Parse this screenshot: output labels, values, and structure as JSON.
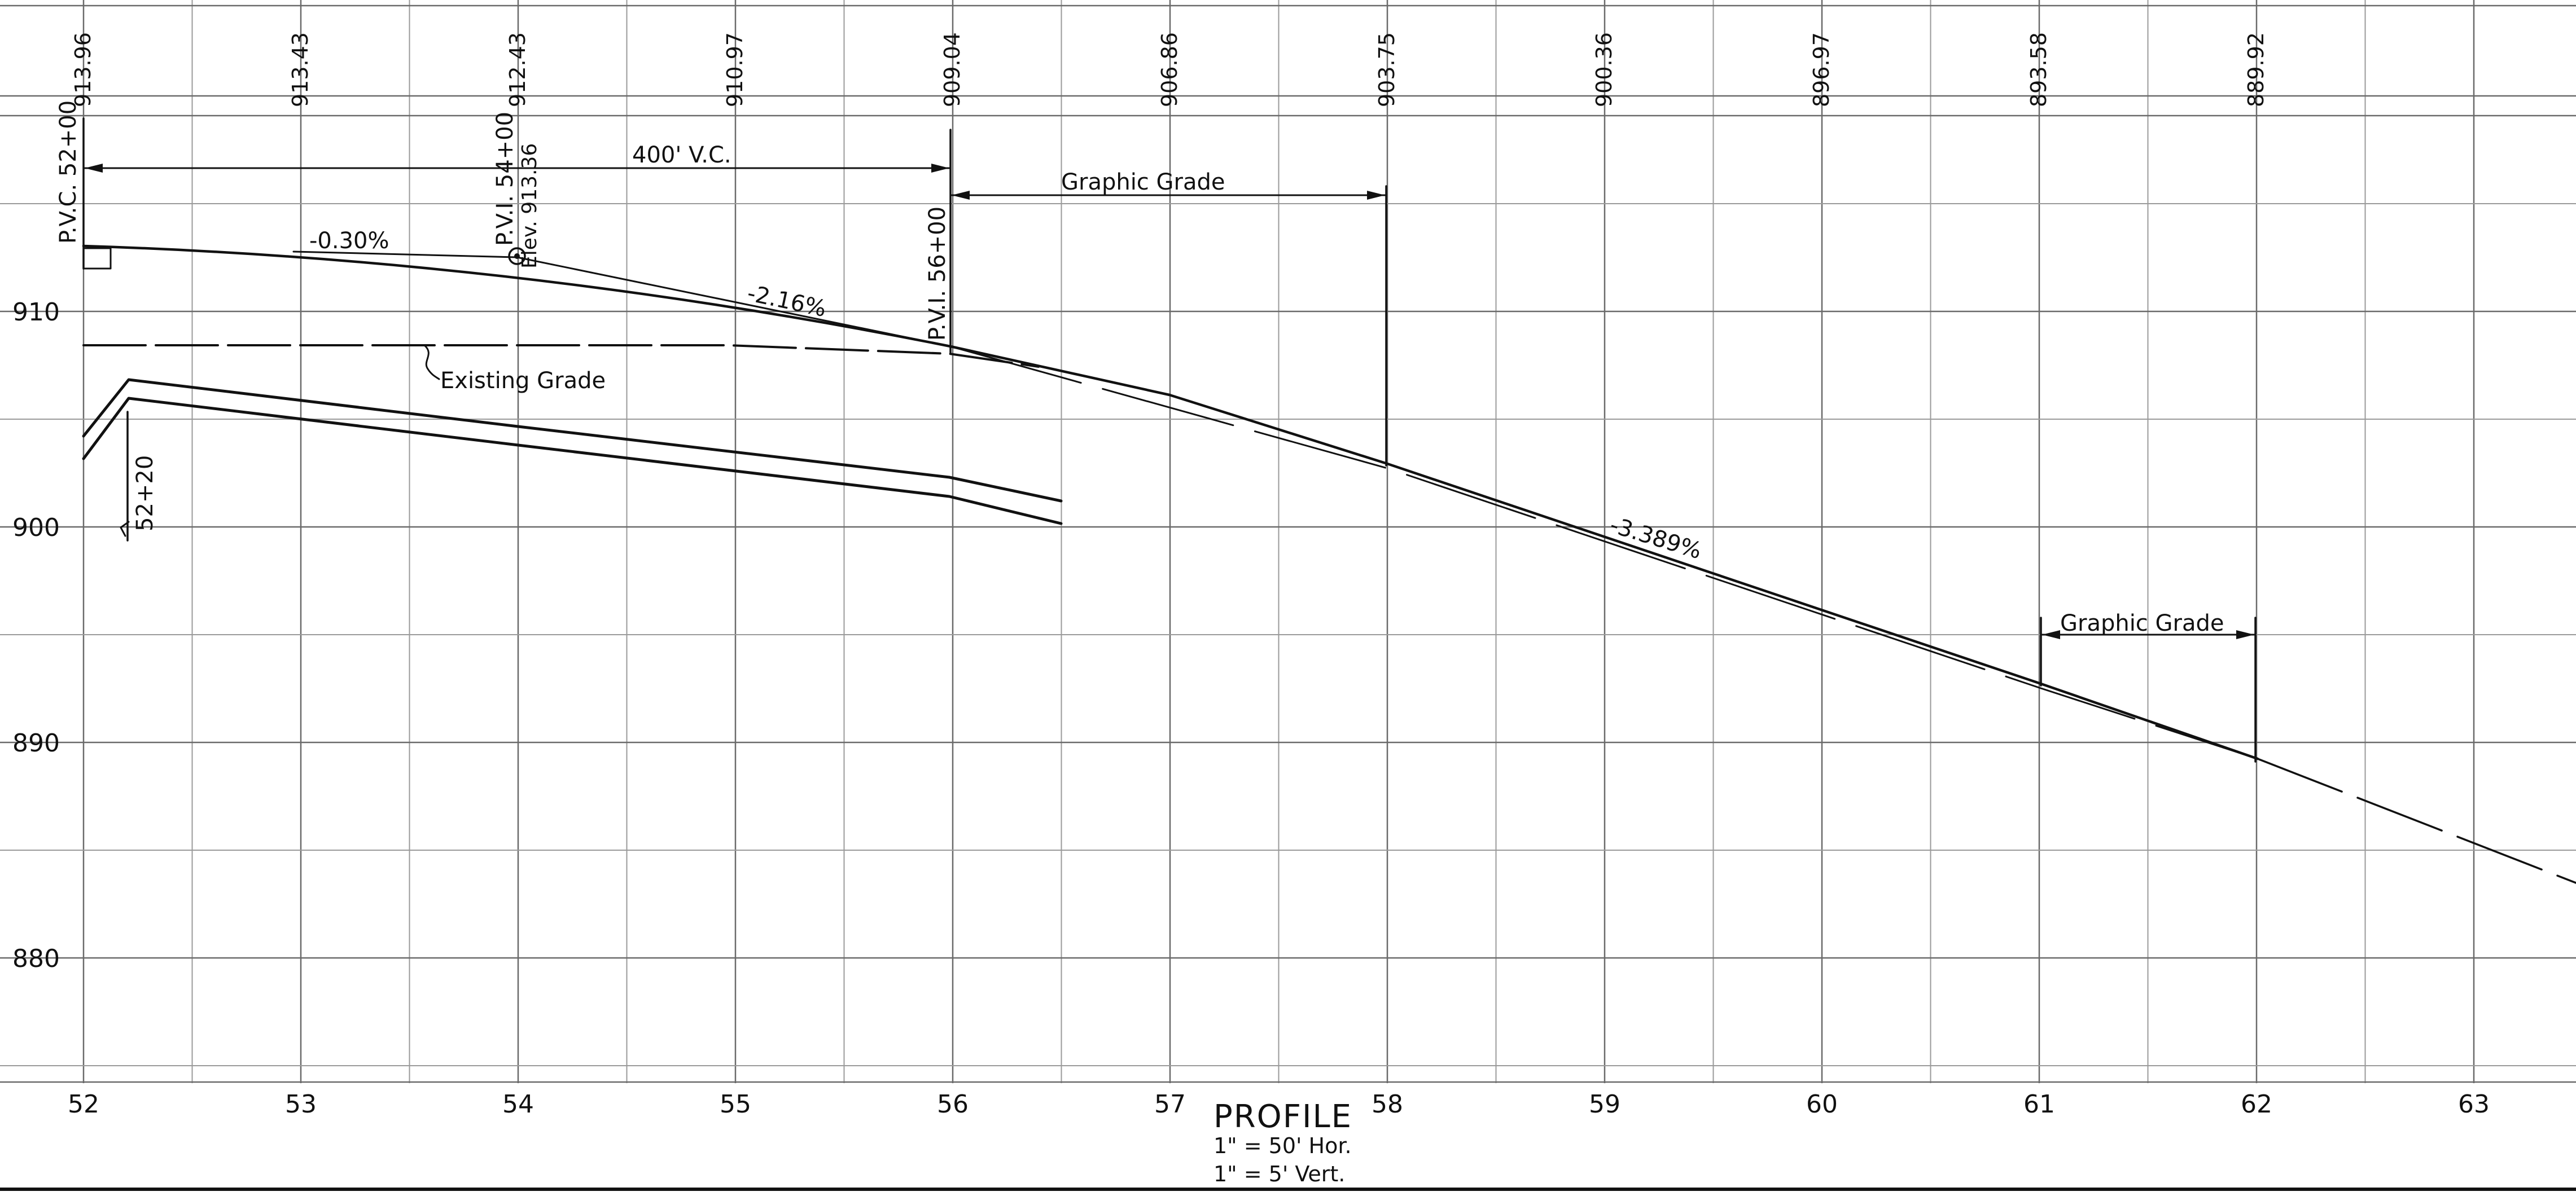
{
  "drawing": {
    "title": "PROFILE",
    "scale_horizontal": "1\" = 50' Hor.",
    "scale_vertical": "1\" = 5' Vert."
  },
  "top_elevations": [
    {
      "sta": 52,
      "label": "913.96"
    },
    {
      "sta": 53,
      "label": "913.43"
    },
    {
      "sta": 54,
      "label": "912.43"
    },
    {
      "sta": 55,
      "label": "910.97"
    },
    {
      "sta": 56,
      "label": "909.04"
    },
    {
      "sta": 57,
      "label": "906.86"
    },
    {
      "sta": 58,
      "label": "903.75"
    },
    {
      "sta": 59,
      "label": "900.36"
    },
    {
      "sta": 60,
      "label": "896.97"
    },
    {
      "sta": 61,
      "label": "893.58"
    },
    {
      "sta": 62,
      "label": "889.92"
    }
  ],
  "stations": [
    {
      "value": 52,
      "label": "52"
    },
    {
      "value": 53,
      "label": "53"
    },
    {
      "value": 54,
      "label": "54"
    },
    {
      "value": 55,
      "label": "55"
    },
    {
      "value": 56,
      "label": "56"
    },
    {
      "value": 57,
      "label": "57"
    },
    {
      "value": 58,
      "label": "58"
    },
    {
      "value": 59,
      "label": "59"
    },
    {
      "value": 60,
      "label": "60"
    },
    {
      "value": 61,
      "label": "61"
    },
    {
      "value": 62,
      "label": "62"
    },
    {
      "value": 63,
      "label": "63"
    }
  ],
  "elevations": [
    {
      "value": 910,
      "label": "910"
    },
    {
      "value": 900,
      "label": "900"
    },
    {
      "value": 890,
      "label": "890"
    },
    {
      "value": 880,
      "label": "880"
    }
  ],
  "annotations": {
    "pvc": "P.V.C. 52+00",
    "pvi_54": "P.V.I. 54+00",
    "pvi_54_elev": "Elev. 913.36",
    "pvi_56": "P.V.I. 56+00",
    "vertical_curve": "400' V.C.",
    "graphic_grade_1": "Graphic Grade",
    "graphic_grade_2": "Graphic Grade",
    "grade_1": "-0.30%",
    "grade_2": "-2.16%",
    "grade_3": "-3.389%",
    "existing_grade": "Existing Grade",
    "station_52_20": "52+20"
  }
}
